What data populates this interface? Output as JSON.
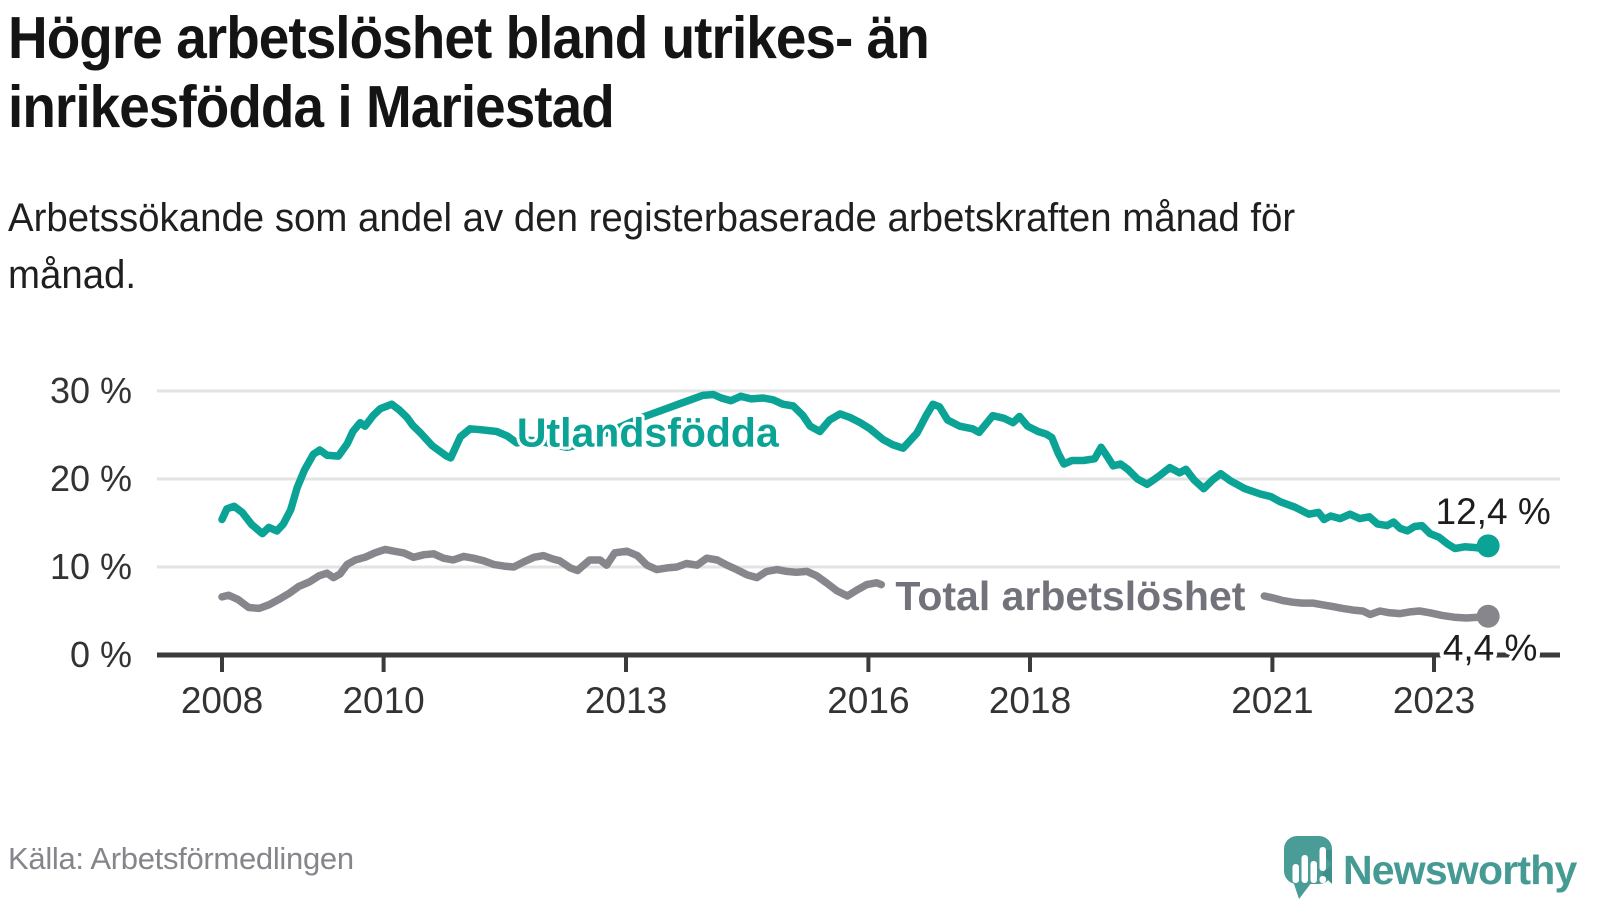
{
  "header": {
    "title": "Högre arbetslöshet bland utrikes- än inrikesfödda i Mariestad",
    "subtitle": "Arbetssökande som andel av den registerbaserade arbetskraften månad för månad."
  },
  "footer": {
    "source": "Källa: Arbetsförmedlingen",
    "brand": "Newsworthy"
  },
  "colors": {
    "teal_line": "#0aa396",
    "gray_line": "#86868c",
    "gray_label": "#72727a",
    "axis": "#3b3b3b",
    "gridline": "#e3e3e3",
    "tick_label": "#333333",
    "value_label": "#1d1d1d",
    "brand_teal": "#4a9c96",
    "brand_teal_dark": "#3e8e89"
  },
  "chart_data": {
    "type": "line",
    "title": "Arbetssökande som andel av den registerbaserade arbetskraften månad för månad",
    "xlabel": "",
    "ylabel": "%",
    "x_range": [
      2007.9,
      2023.9
    ],
    "y_range": [
      0,
      30
    ],
    "grid": true,
    "legend_position": "inline-labels",
    "x_axis": {
      "ticks": [
        {
          "year": 2008,
          "label": "2008"
        },
        {
          "year": 2010,
          "label": "2010"
        },
        {
          "year": 2013,
          "label": "2013"
        },
        {
          "year": 2016,
          "label": "2016"
        },
        {
          "year": 2018,
          "label": "2018"
        },
        {
          "year": 2021,
          "label": "2021"
        },
        {
          "year": 2023,
          "label": "2023"
        }
      ]
    },
    "y_axis": {
      "ticks": [
        {
          "value": 0,
          "label": "0 %"
        },
        {
          "value": 10,
          "label": "10 %"
        },
        {
          "value": 20,
          "label": "20 %"
        },
        {
          "value": 30,
          "label": "30 %"
        }
      ]
    },
    "series": [
      {
        "name": "Utlandsfödda",
        "id": "utlandsfodda",
        "color": "#0aa396",
        "label_anchor": [
          2013.27,
          25.3
        ],
        "end_point": [
          2023.67,
          12.4
        ],
        "end_value": 12.4,
        "end_value_label": "12,4 %",
        "value_label_offset": [
          5,
          -22
        ],
        "segments": [
          [
            [
              2008.0,
              15.4
            ],
            [
              2008.06,
              16.6
            ],
            [
              2008.15,
              16.9
            ],
            [
              2008.25,
              16.2
            ],
            [
              2008.37,
              14.8
            ],
            [
              2008.5,
              13.8
            ],
            [
              2008.58,
              14.5
            ],
            [
              2008.68,
              14.1
            ],
            [
              2008.76,
              14.9
            ],
            [
              2008.85,
              16.5
            ],
            [
              2008.93,
              19.0
            ],
            [
              2009.02,
              21.0
            ],
            [
              2009.13,
              22.8
            ],
            [
              2009.21,
              23.3
            ],
            [
              2009.3,
              22.7
            ],
            [
              2009.44,
              22.6
            ],
            [
              2009.55,
              24.0
            ],
            [
              2009.62,
              25.4
            ],
            [
              2009.71,
              26.4
            ],
            [
              2009.77,
              26.0
            ],
            [
              2009.87,
              27.2
            ],
            [
              2009.96,
              28.0
            ],
            [
              2010.1,
              28.5
            ],
            [
              2010.2,
              27.8
            ],
            [
              2010.29,
              27.0
            ],
            [
              2010.36,
              26.1
            ],
            [
              2010.45,
              25.3
            ],
            [
              2010.6,
              23.8
            ],
            [
              2010.78,
              22.6
            ],
            [
              2010.83,
              22.4
            ],
            [
              2010.95,
              24.8
            ],
            [
              2011.07,
              25.7
            ],
            [
              2011.2,
              25.6
            ],
            [
              2011.4,
              25.4
            ],
            [
              2011.53,
              24.9
            ],
            [
              2011.65,
              24.1
            ],
            [
              2011.8,
              24.4
            ],
            [
              2011.95,
              24.3
            ],
            [
              2012.1,
              23.9
            ],
            [
              2012.27,
              23.6
            ],
            [
              2012.45,
              24.0
            ],
            [
              2012.6,
              24.6
            ],
            [
              2012.75,
              25.2
            ],
            [
              2012.9,
              25.8
            ],
            [
              2013.05,
              26.4
            ],
            [
              2013.2,
              27.0
            ],
            [
              2013.35,
              27.5
            ],
            [
              2013.5,
              28.0
            ],
            [
              2013.65,
              28.5
            ],
            [
              2013.8,
              29.0
            ],
            [
              2013.95,
              29.5
            ],
            [
              2014.08,
              29.6
            ],
            [
              2014.18,
              29.2
            ],
            [
              2014.3,
              28.9
            ],
            [
              2014.42,
              29.4
            ],
            [
              2014.55,
              29.1
            ],
            [
              2014.7,
              29.2
            ],
            [
              2014.82,
              29.0
            ],
            [
              2014.94,
              28.5
            ],
            [
              2015.07,
              28.3
            ],
            [
              2015.19,
              27.2
            ],
            [
              2015.28,
              26.0
            ],
            [
              2015.4,
              25.4
            ],
            [
              2015.52,
              26.7
            ],
            [
              2015.65,
              27.4
            ],
            [
              2015.77,
              27.0
            ],
            [
              2015.9,
              26.4
            ],
            [
              2016.02,
              25.7
            ],
            [
              2016.18,
              24.5
            ],
            [
              2016.3,
              23.9
            ],
            [
              2016.43,
              23.5
            ],
            [
              2016.6,
              25.2
            ],
            [
              2016.72,
              27.3
            ],
            [
              2016.8,
              28.5
            ],
            [
              2016.88,
              28.2
            ],
            [
              2016.98,
              26.7
            ],
            [
              2017.13,
              26.0
            ],
            [
              2017.29,
              25.7
            ],
            [
              2017.37,
              25.3
            ],
            [
              2017.54,
              27.2
            ],
            [
              2017.68,
              26.9
            ],
            [
              2017.79,
              26.4
            ],
            [
              2017.87,
              27.1
            ],
            [
              2017.97,
              26.0
            ],
            [
              2018.1,
              25.4
            ],
            [
              2018.2,
              25.1
            ],
            [
              2018.27,
              24.7
            ],
            [
              2018.35,
              22.9
            ],
            [
              2018.42,
              21.7
            ],
            [
              2018.52,
              22.1
            ],
            [
              2018.66,
              22.1
            ],
            [
              2018.8,
              22.3
            ],
            [
              2018.88,
              23.6
            ],
            [
              2018.96,
              22.5
            ],
            [
              2019.03,
              21.5
            ],
            [
              2019.12,
              21.7
            ],
            [
              2019.21,
              21.1
            ],
            [
              2019.33,
              20.0
            ],
            [
              2019.45,
              19.4
            ],
            [
              2019.53,
              19.9
            ],
            [
              2019.62,
              20.5
            ],
            [
              2019.73,
              21.3
            ],
            [
              2019.85,
              20.7
            ],
            [
              2019.93,
              21.1
            ],
            [
              2020.03,
              19.9
            ],
            [
              2020.15,
              18.9
            ],
            [
              2020.26,
              19.9
            ],
            [
              2020.36,
              20.6
            ],
            [
              2020.48,
              19.8
            ],
            [
              2020.66,
              18.9
            ],
            [
              2020.85,
              18.3
            ],
            [
              2020.98,
              18.0
            ],
            [
              2021.1,
              17.4
            ],
            [
              2021.28,
              16.8
            ],
            [
              2021.45,
              16.0
            ],
            [
              2021.57,
              16.2
            ],
            [
              2021.64,
              15.4
            ],
            [
              2021.72,
              15.8
            ],
            [
              2021.84,
              15.5
            ],
            [
              2021.96,
              16.0
            ],
            [
              2022.08,
              15.5
            ],
            [
              2022.2,
              15.7
            ],
            [
              2022.3,
              14.9
            ],
            [
              2022.42,
              14.7
            ],
            [
              2022.5,
              15.1
            ],
            [
              2022.58,
              14.4
            ],
            [
              2022.67,
              14.1
            ],
            [
              2022.76,
              14.6
            ],
            [
              2022.85,
              14.7
            ],
            [
              2022.95,
              13.8
            ],
            [
              2023.06,
              13.4
            ],
            [
              2023.17,
              12.6
            ],
            [
              2023.26,
              12.1
            ],
            [
              2023.38,
              12.3
            ],
            [
              2023.52,
              12.2
            ],
            [
              2023.6,
              12.1
            ],
            [
              2023.67,
              12.4
            ]
          ]
        ]
      },
      {
        "name": "Total arbetslöshet",
        "id": "total",
        "color": "#86868c",
        "label_anchor": [
          2018.5,
          6.7
        ],
        "end_point": [
          2023.67,
          4.4
        ],
        "end_value": 4.4,
        "end_value_label": "4,4 %",
        "value_label_offset": [
          2,
          44
        ],
        "segments": [
          [
            [
              2008.0,
              6.6
            ],
            [
              2008.08,
              6.8
            ],
            [
              2008.2,
              6.3
            ],
            [
              2008.33,
              5.4
            ],
            [
              2008.46,
              5.3
            ],
            [
              2008.58,
              5.7
            ],
            [
              2008.7,
              6.3
            ],
            [
              2008.83,
              7.0
            ],
            [
              2008.95,
              7.8
            ],
            [
              2009.08,
              8.3
            ],
            [
              2009.2,
              9.0
            ],
            [
              2009.3,
              9.3
            ],
            [
              2009.38,
              8.8
            ],
            [
              2009.46,
              9.2
            ],
            [
              2009.55,
              10.3
            ],
            [
              2009.65,
              10.8
            ],
            [
              2009.77,
              11.1
            ],
            [
              2009.89,
              11.6
            ],
            [
              2010.02,
              12.0
            ],
            [
              2010.13,
              11.8
            ],
            [
              2010.25,
              11.6
            ],
            [
              2010.37,
              11.1
            ],
            [
              2010.5,
              11.4
            ],
            [
              2010.62,
              11.5
            ],
            [
              2010.74,
              11.0
            ],
            [
              2010.86,
              10.8
            ],
            [
              2010.99,
              11.2
            ],
            [
              2011.11,
              11.0
            ],
            [
              2011.24,
              10.7
            ],
            [
              2011.36,
              10.3
            ],
            [
              2011.49,
              10.1
            ],
            [
              2011.61,
              10.0
            ],
            [
              2011.74,
              10.6
            ],
            [
              2011.86,
              11.1
            ],
            [
              2011.98,
              11.3
            ],
            [
              2012.1,
              10.9
            ],
            [
              2012.18,
              10.7
            ],
            [
              2012.31,
              9.9
            ],
            [
              2012.4,
              9.6
            ],
            [
              2012.55,
              10.8
            ],
            [
              2012.68,
              10.8
            ],
            [
              2012.76,
              10.2
            ],
            [
              2012.86,
              11.6
            ],
            [
              2013.01,
              11.8
            ],
            [
              2013.14,
              11.3
            ],
            [
              2013.26,
              10.2
            ],
            [
              2013.38,
              9.7
            ],
            [
              2013.51,
              9.9
            ],
            [
              2013.63,
              10.0
            ],
            [
              2013.75,
              10.4
            ],
            [
              2013.88,
              10.2
            ],
            [
              2014.0,
              11.0
            ],
            [
              2014.13,
              10.8
            ],
            [
              2014.25,
              10.2
            ],
            [
              2014.37,
              9.7
            ],
            [
              2014.5,
              9.1
            ],
            [
              2014.62,
              8.8
            ],
            [
              2014.74,
              9.5
            ],
            [
              2014.87,
              9.7
            ],
            [
              2014.99,
              9.5
            ],
            [
              2015.11,
              9.4
            ],
            [
              2015.24,
              9.5
            ],
            [
              2015.36,
              9.0
            ],
            [
              2015.48,
              8.2
            ],
            [
              2015.61,
              7.3
            ],
            [
              2015.74,
              6.7
            ],
            [
              2015.86,
              7.4
            ],
            [
              2015.98,
              8.0
            ],
            [
              2016.1,
              8.2
            ],
            [
              2016.16,
              8.0
            ]
          ],
          [
            [
              2020.9,
              6.7
            ],
            [
              2021.0,
              6.5
            ],
            [
              2021.12,
              6.2
            ],
            [
              2021.25,
              6.0
            ],
            [
              2021.37,
              5.9
            ],
            [
              2021.5,
              5.9
            ],
            [
              2021.62,
              5.7
            ],
            [
              2021.75,
              5.5
            ],
            [
              2021.87,
              5.3
            ],
            [
              2022.0,
              5.1
            ],
            [
              2022.12,
              5.0
            ],
            [
              2022.21,
              4.6
            ],
            [
              2022.33,
              5.0
            ],
            [
              2022.45,
              4.8
            ],
            [
              2022.58,
              4.7
            ],
            [
              2022.7,
              4.9
            ],
            [
              2022.82,
              5.0
            ],
            [
              2022.95,
              4.8
            ],
            [
              2023.1,
              4.5
            ],
            [
              2023.25,
              4.3
            ],
            [
              2023.4,
              4.2
            ],
            [
              2023.55,
              4.3
            ],
            [
              2023.67,
              4.4
            ]
          ]
        ]
      }
    ]
  }
}
